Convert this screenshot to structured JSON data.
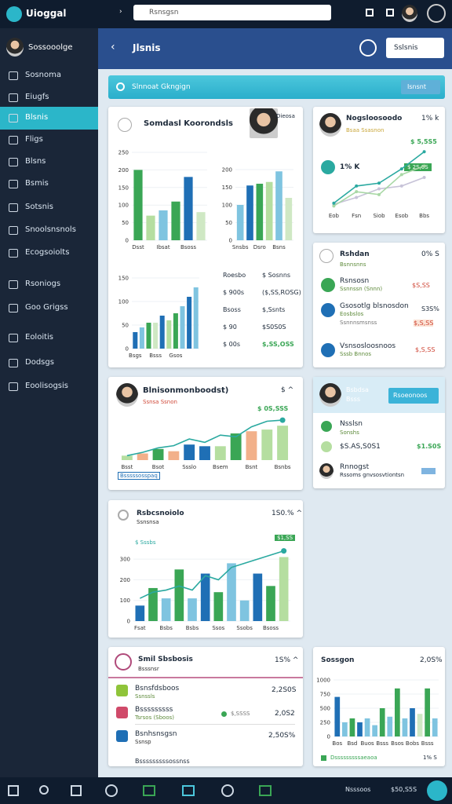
{
  "topbar": {
    "brand": "Uioggal",
    "search_placeholder": "Rsnsgsn"
  },
  "sidebar": {
    "user": "Sossooolge",
    "items": [
      "Sosnoma",
      "Eiugfs",
      "Blsnis",
      "Fligs",
      "Blsns",
      "Bsmis",
      "Sotsnis",
      "Snoolsnsnols",
      "Ecogsoiolts",
      "Rsoniogs",
      "Goo Grigss",
      "Eoloitis",
      "Dodsgs",
      "Eoolisogsis"
    ]
  },
  "header": {
    "title": "Jlsnis",
    "button": "Sslsnis"
  },
  "banner": {
    "text": "Slnnoat Gkngign",
    "button": "Isnsnt"
  },
  "card_a": {
    "title": "Somdasl Koorondsls",
    "tag": "Dieosa",
    "chart_1": {
      "type": "bar",
      "categories": [
        "Dsst",
        null,
        "Ibsat",
        null,
        "Bsoss",
        null
      ],
      "values": [
        200,
        70,
        85,
        110,
        180,
        80
      ],
      "colors": [
        "#3aa655",
        "#b5dea0",
        "#7fc4e0",
        "#3aa655",
        "#1f6fb5",
        "#cfe8c4"
      ],
      "ylim": [
        0,
        250
      ],
      "yticks": [
        0,
        50,
        100,
        150,
        200,
        250
      ]
    },
    "chart_2": {
      "type": "bar",
      "categories": [
        "Snsbs",
        null,
        "Dsro",
        null,
        "Bsns",
        null
      ],
      "values": [
        100,
        155,
        160,
        165,
        195,
        120
      ],
      "colors": [
        "#7fc4e0",
        "#1f6fb5",
        "#3aa655",
        "#b5dea0",
        "#7fc4e0",
        "#cfe8c4"
      ],
      "ylim": [
        0,
        200
      ],
      "yticks": [
        0,
        50,
        100,
        150,
        200
      ]
    },
    "chart_3": {
      "type": "bar",
      "categories": [
        "Bsgs",
        null,
        null,
        "Bsss",
        null,
        null,
        "Gsos",
        null,
        null,
        null
      ],
      "values": [
        35,
        45,
        55,
        55,
        70,
        60,
        75,
        90,
        110,
        130
      ],
      "colors": [
        "#1f6fb5",
        "#7fc4e0",
        "#3aa655",
        "#cfe8c4",
        "#1f6fb5",
        "#b5dea0",
        "#3aa655",
        "#7fc4e0",
        "#1f6fb5",
        "#7fc4e0"
      ],
      "ylim": [
        0,
        160
      ],
      "yticks": [
        0,
        50,
        100,
        150
      ]
    },
    "list": [
      [
        "Roesbo",
        "$ Sosnns"
      ],
      [
        "$ 900s",
        "($,SS,ROSG)"
      ],
      [
        "Bsoss",
        "$,Ssnts"
      ],
      [
        "$ 90",
        "$S0S0S"
      ],
      [
        "$ 00s",
        "$,SS,OSS"
      ]
    ]
  },
  "card_b": {
    "title": "Nogsloosoodo",
    "value": "1% k",
    "subtitle": "Bsaa Ssasnon",
    "peak": "$ 5,5S5",
    "kpi": "1% K",
    "badge": "$ 2S,0S",
    "chart": {
      "type": "line",
      "categories": [
        "Eob",
        "Fsn",
        "Siob",
        "Esob",
        "Bbs"
      ],
      "series": [
        {
          "color": "#c7c3d8",
          "values": [
            8,
            20,
            35,
            40,
            55
          ]
        },
        {
          "color": "#a9d8a6",
          "values": [
            5,
            30,
            25,
            60,
            75
          ]
        },
        {
          "color": "#2aa9a0",
          "values": [
            10,
            40,
            45,
            70,
            100
          ]
        }
      ]
    }
  },
  "card_c": {
    "title": "Rshdan",
    "subtitle": "Bsnnsnns",
    "value": "0% S",
    "items": [
      {
        "name": "Rsnsosn",
        "sub": "Ssnnssn (Snnn)",
        "value": "$S,SS"
      },
      {
        "name": "Gsosotlg blsnosdon",
        "sub": "Eosbslos",
        "note": "Ssnnnsmsnss",
        "value": "S3S%",
        "value2": "$,S,SS"
      },
      {
        "name": "Vsnsosloosnoos",
        "sub": "Sssb Bnnos",
        "value": "$,S,SS"
      }
    ]
  },
  "card_d": {
    "title": "Blnisonmonboodst)",
    "subtitle": "Ssnsa Ssnon",
    "value": "$ ^",
    "badge": "$ 0S,SSS",
    "footer": "Bsssssosspaq",
    "chart": {
      "type": "bar",
      "categories": [
        "Bsst",
        null,
        "Bsot",
        null,
        "Ssslo",
        null,
        "Bsem",
        null,
        "Bsnt",
        null,
        "Bsnbs"
      ],
      "values": [
        8,
        12,
        20,
        16,
        28,
        25,
        25,
        48,
        52,
        55,
        62
      ],
      "colors": [
        "#b5dea0",
        "#f2b08a",
        "#3aa655",
        "#f2b08a",
        "#1f6fb5",
        "#1f6fb5",
        "#b5dea0",
        "#3aa655",
        "#f2b08a",
        "#b5dea0",
        "#b5dea0"
      ],
      "line": [
        8,
        14,
        22,
        26,
        38,
        32,
        45,
        42,
        60,
        70,
        72
      ],
      "line_color": "#2aa9a0"
    }
  },
  "card_e": {
    "title": "Bsbdsa",
    "subtitle": "Bsss",
    "button": "Rsoeonoos",
    "items": [
      {
        "name": "Nsslsn",
        "sub": "Sonshs"
      },
      {
        "name": "$S.AS,S0S1",
        "value": "$1.S0S"
      },
      {
        "name": "Rnnogst",
        "sub": "Rssoms gnvsosvtiontsn"
      }
    ]
  },
  "card_f": {
    "title": "Rsbcsnoiolo",
    "subtitle": "Ssnsnsa",
    "value": "1S0.% ^",
    "legend": "$ Sssbs",
    "badge": "$1,SS",
    "chart": {
      "type": "bar",
      "categories": [
        "Fsat",
        null,
        "Bsbs",
        null,
        "Bsbs",
        null,
        "Ssos",
        null,
        "Ssobs",
        null,
        "Bsoss",
        null
      ],
      "values": [
        75,
        160,
        110,
        250,
        110,
        230,
        140,
        280,
        100,
        230,
        170,
        310
      ],
      "colors": [
        "#1f6fb5",
        "#3aa655",
        "#7fc4e0",
        "#3aa655",
        "#7fc4e0",
        "#1f6fb5",
        "#3aa655",
        "#7fc4e0",
        "#7fc4e0",
        "#1f6fb5",
        "#3aa655",
        "#b5dea0"
      ],
      "ylim": [
        0,
        350
      ],
      "yticks": [
        0,
        100,
        200,
        300
      ],
      "line": [
        110,
        140,
        150,
        170,
        150,
        220,
        200,
        260,
        280,
        300,
        320,
        340
      ],
      "line_color": "#2aa9a0"
    }
  },
  "card_g": {
    "title": "Smil Sbsbosis",
    "subtitle": "Bsssnsr",
    "value": "1S% ^",
    "items": [
      {
        "name": "Bsnsfdsboos",
        "sub": "Ssnssls",
        "value": "2,2S0S"
      },
      {
        "name": "Bsssssssss",
        "sub": "Tsrsos (Sboos)",
        "note": "$,SSSS",
        "value": "2,0S2"
      },
      {
        "name": "Bsnhsnsgsn",
        "sub": "Ssnsp",
        "value": "2,50S%"
      },
      {
        "name": "Bsssssssssossnss"
      }
    ]
  },
  "card_h": {
    "title": "Sossgon",
    "value": "2,0S%",
    "footer": "Dsssssssssaeaoa",
    "footer_value": "1% S",
    "chart": {
      "type": "bar",
      "categories": [
        "Bos",
        null,
        "Bsd",
        null,
        "Buos",
        null,
        "Bsss",
        null,
        "Bsos",
        null,
        "Bobs",
        null,
        "Bsss",
        null
      ],
      "values": [
        700,
        250,
        320,
        250,
        320,
        200,
        500,
        350,
        850,
        320,
        500,
        400,
        850,
        320
      ],
      "colors": [
        "#1f6fb5",
        "#7fc4e0",
        "#3aa655",
        "#1f6fb5",
        "#7fc4e0",
        "#7fc4e0",
        "#3aa655",
        "#7fc4e0",
        "#3aa655",
        "#7fc4e0",
        "#1f6fb5",
        "#cfe8c4",
        "#3aa655",
        "#7fc4e0"
      ],
      "ylim": [
        0,
        1000
      ],
      "yticks": [
        0,
        250,
        500,
        750,
        1000
      ]
    }
  },
  "bottombar": {
    "label": "Nsssoos",
    "value": "$50,S5S"
  }
}
